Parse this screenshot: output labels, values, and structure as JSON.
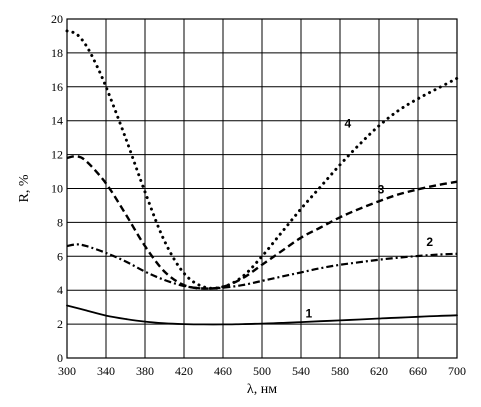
{
  "chart_data": {
    "type": "line",
    "xlabel": "λ, нм",
    "ylabel": "R, %",
    "xlim": [
      300,
      700
    ],
    "ylim": [
      0,
      20
    ],
    "x_ticks": [
      300,
      340,
      380,
      420,
      460,
      500,
      540,
      580,
      620,
      660,
      700
    ],
    "y_ticks": [
      0,
      2,
      4,
      6,
      8,
      10,
      12,
      14,
      16,
      18,
      20
    ],
    "grid": true,
    "legend": "none",
    "series": [
      {
        "name": "1",
        "style": "solid",
        "label_at": [
          548,
          2.4
        ],
        "x": [
          300,
          320,
          340,
          360,
          380,
          400,
          420,
          440,
          460,
          480,
          500,
          520,
          540,
          560,
          580,
          600,
          620,
          640,
          660,
          680,
          700
        ],
        "y": [
          3.1,
          2.8,
          2.5,
          2.3,
          2.15,
          2.05,
          2.0,
          1.98,
          1.98,
          2.0,
          2.03,
          2.07,
          2.12,
          2.17,
          2.22,
          2.27,
          2.33,
          2.38,
          2.43,
          2.48,
          2.52
        ]
      },
      {
        "name": "2",
        "style": "dashdot",
        "label_at": [
          672,
          6.6
        ],
        "x": [
          300,
          310,
          320,
          340,
          360,
          380,
          400,
          420,
          440,
          460,
          480,
          500,
          520,
          540,
          560,
          580,
          600,
          620,
          640,
          660,
          680,
          700
        ],
        "y": [
          6.6,
          6.7,
          6.6,
          6.2,
          5.7,
          5.1,
          4.6,
          4.25,
          4.1,
          4.15,
          4.3,
          4.55,
          4.8,
          5.05,
          5.3,
          5.5,
          5.65,
          5.8,
          5.92,
          6.02,
          6.1,
          6.15
        ]
      },
      {
        "name": "3",
        "style": "dashed",
        "label_at": [
          622,
          9.7
        ],
        "x": [
          300,
          310,
          320,
          340,
          360,
          380,
          400,
          420,
          440,
          460,
          480,
          500,
          520,
          540,
          560,
          580,
          600,
          620,
          640,
          660,
          680,
          700
        ],
        "y": [
          11.8,
          11.9,
          11.6,
          10.3,
          8.5,
          6.6,
          5.1,
          4.3,
          4.1,
          4.2,
          4.7,
          5.5,
          6.3,
          7.1,
          7.7,
          8.3,
          8.8,
          9.25,
          9.65,
          9.95,
          10.2,
          10.4
        ]
      },
      {
        "name": "4",
        "style": "dotted",
        "label_at": [
          588,
          13.6
        ],
        "x": [
          300,
          310,
          320,
          330,
          340,
          360,
          380,
          400,
          420,
          440,
          460,
          480,
          500,
          520,
          540,
          560,
          580,
          600,
          620,
          640,
          660,
          680,
          700
        ],
        "y": [
          19.3,
          19.1,
          18.4,
          17.3,
          16.0,
          13.0,
          9.8,
          6.9,
          5.0,
          4.2,
          4.2,
          4.8,
          6.0,
          7.4,
          8.8,
          10.1,
          11.4,
          12.6,
          13.7,
          14.6,
          15.3,
          15.9,
          16.5
        ]
      }
    ]
  }
}
